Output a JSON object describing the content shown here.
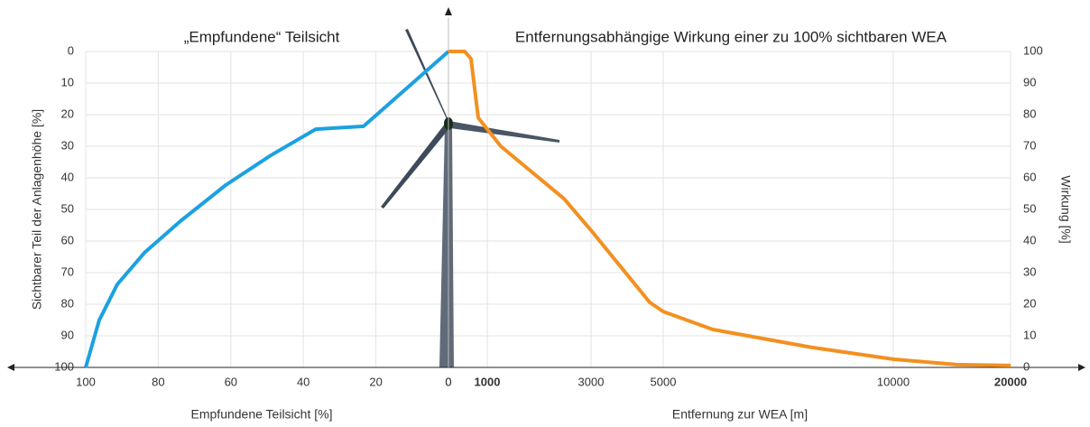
{
  "chart_data": [
    {
      "type": "line",
      "title": "„Empfundene“ Teilsicht",
      "x_label": "Empfundene Teilsicht [%]",
      "y_label": "Sichtbarer Teil der Anlagenhöhe [%]",
      "x": [
        100,
        96.3,
        91.3,
        83.8,
        73.9,
        61.4,
        49,
        36.6,
        23.4,
        0
      ],
      "values": [
        100,
        85.1,
        73.7,
        63.7,
        53.7,
        42.3,
        32.9,
        24.6,
        23.7,
        0
      ],
      "color": "#1ba1e2",
      "xlim": [
        100,
        0
      ],
      "xticks": [
        100,
        80,
        60,
        40,
        20,
        0
      ],
      "ylim": [
        100,
        0
      ],
      "yticks": [
        0,
        10,
        20,
        30,
        40,
        50,
        60,
        70,
        80,
        90,
        100
      ],
      "grid": true
    },
    {
      "type": "line",
      "title": "Entfernungsabhängige Wirkung einer zu 100% sichtbaren WEA",
      "x_label": "Entfernung zur WEA [m]",
      "y_label": "Wirkung [%]",
      "x": [
        0,
        419,
        581,
        767,
        1261,
        2478,
        3000,
        4625,
        5000,
        6078,
        8235,
        10000,
        15385,
        20000
      ],
      "values": [
        100,
        100,
        97.7,
        79,
        70,
        53.4,
        43.4,
        20.6,
        17.7,
        12,
        6.3,
        2.6,
        0.9,
        0.6
      ],
      "color": "#f39020",
      "xlim": [
        0,
        20000
      ],
      "xticks": [
        0,
        1000,
        3000,
        5000,
        10000,
        20000
      ],
      "ylim": [
        0,
        100
      ],
      "yticks": [
        100,
        90,
        80,
        70,
        60,
        50,
        40,
        30,
        20,
        10,
        0
      ],
      "grid": true
    }
  ]
}
